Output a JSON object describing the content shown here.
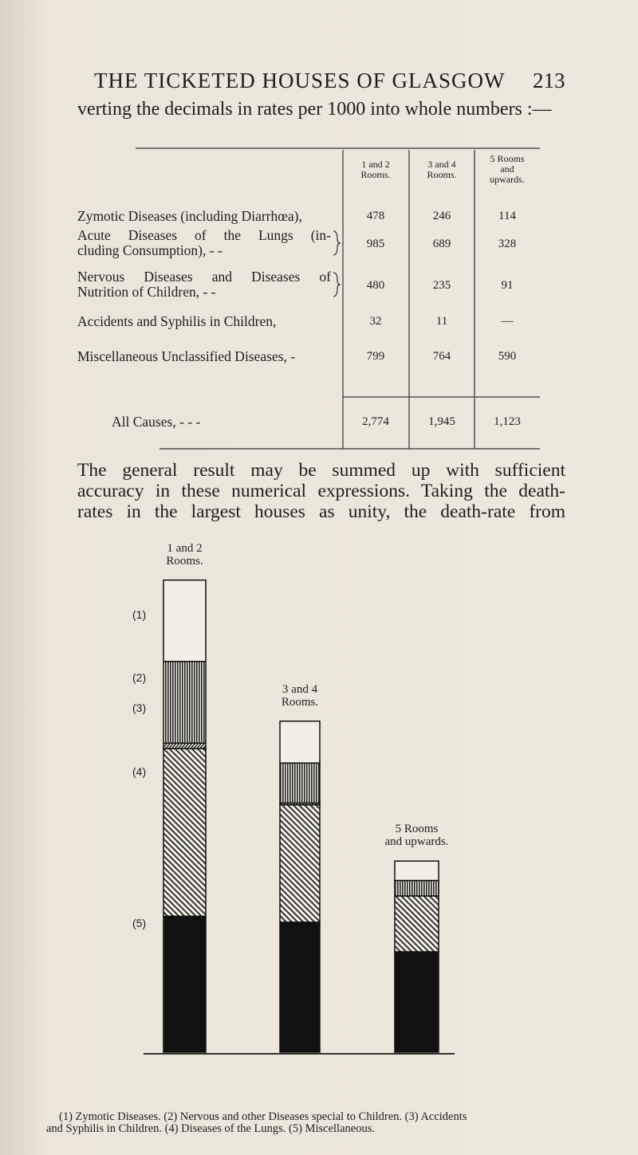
{
  "header": {
    "title": "THE TICKETED HOUSES OF GLASGOW",
    "page_number": "213"
  },
  "intro_text": "verting the decimals in rates per 1000 into whole numbers :—",
  "table": {
    "columns": [
      [
        "1 and 2",
        "Rooms."
      ],
      [
        "3 and 4",
        "Rooms."
      ],
      [
        "5 Rooms",
        "and",
        "upwards."
      ]
    ],
    "rows": [
      {
        "label": [
          "Zymotic Diseases (including Diarrhœa),"
        ],
        "values": [
          478,
          246,
          114
        ]
      },
      {
        "label": [
          "Acute Diseases of the Lungs (in-",
          "cluding Consumption), - -"
        ],
        "values": [
          985,
          689,
          328
        ]
      },
      {
        "label": [
          "Nervous Diseases and Diseases of",
          "Nutrition of Children, - -"
        ],
        "values": [
          480,
          235,
          91
        ]
      },
      {
        "label": [
          "Accidents and Syphilis in Children,"
        ],
        "values": [
          32,
          11,
          "—"
        ]
      },
      {
        "label": [
          "Miscellaneous Unclassified Diseases, -"
        ],
        "values": [
          799,
          764,
          590
        ]
      },
      {
        "label": [
          "All Causes, - - -"
        ],
        "values": [
          {
            "value": 2774,
            "label": "2,774"
          },
          {
            "value": 1945,
            "label": "1,945"
          },
          {
            "value": 1123,
            "label": "1,123"
          }
        ]
      }
    ]
  },
  "paragraph": [
    "The general result may be summed up with sufficient",
    "accuracy in these numerical expressions. Taking the death-",
    "rates in the largest houses as unity, the death-rate from"
  ],
  "diagram": {
    "bar_labels": [
      [
        "1 and 2",
        "Rooms."
      ],
      [
        "3 and 4",
        "Rooms."
      ],
      [
        "5 Rooms",
        "and upwards."
      ]
    ],
    "segment_labels": [
      "(1)",
      "(2)",
      "(3)",
      "(4)",
      "(5)"
    ],
    "caption": [
      "(1) Zymotic Diseases. (2) Nervous and other Diseases special to Children. (3) Accidents",
      "and Syphilis in Children. (4) Diseases of the Lungs. (5) Miscellaneous."
    ]
  }
}
